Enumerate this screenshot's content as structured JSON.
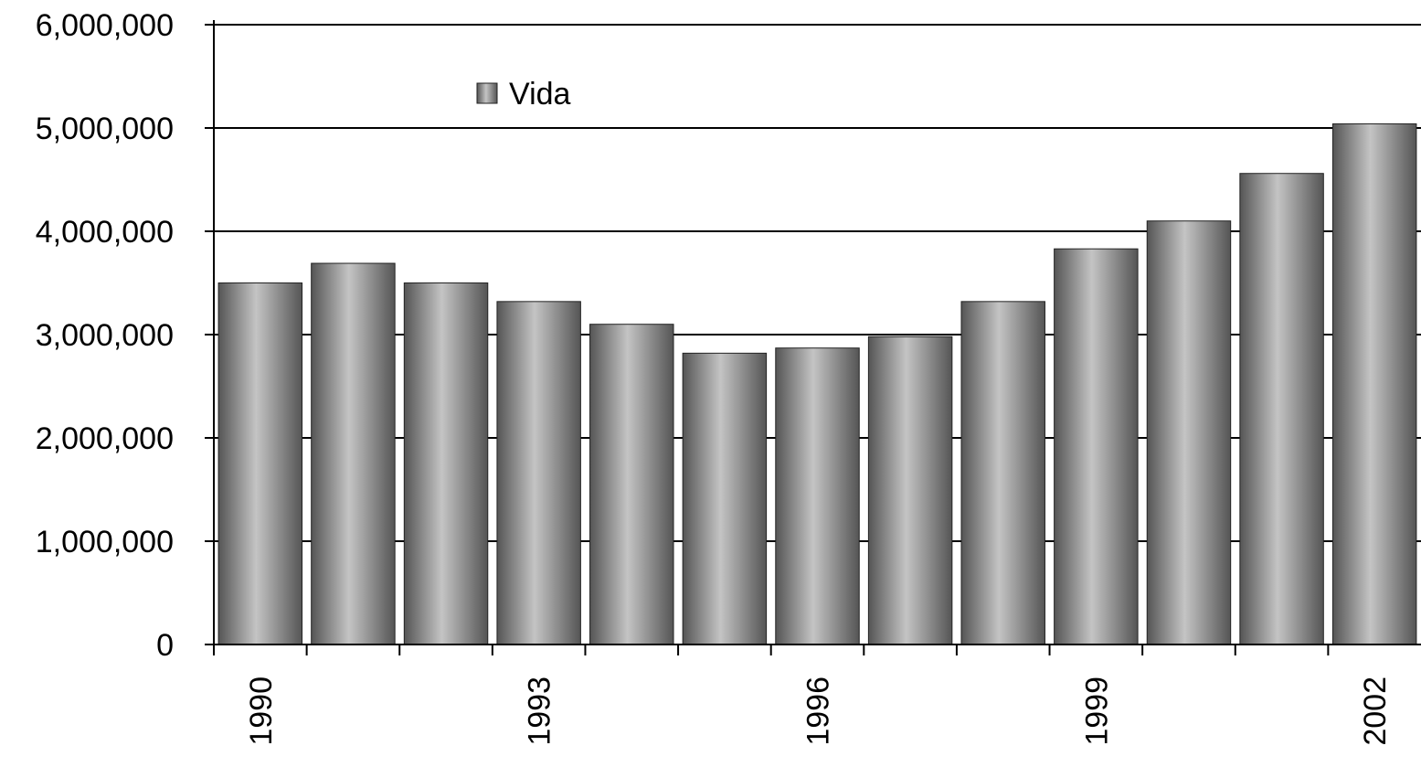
{
  "chart_data": {
    "type": "bar",
    "categories": [
      "1990",
      null,
      null,
      "1993",
      null,
      null,
      "1996",
      null,
      null,
      "1999",
      null,
      null,
      "2002"
    ],
    "series": [
      {
        "name": "Vida",
        "color": "#c4c4c4",
        "values": [
          3500000,
          3690000,
          3500000,
          3320000,
          3100000,
          2820000,
          2870000,
          2980000,
          3320000,
          3830000,
          4100000,
          4560000,
          5040000
        ]
      }
    ],
    "ylim": [
      0,
      6000000
    ],
    "yticks": [
      0,
      {
        "value": 1000000,
        "label": "1,000,000"
      },
      {
        "value": 2000000,
        "label": "2,000,000"
      },
      {
        "value": 3000000,
        "label": "3,000,000"
      },
      {
        "value": 4000000,
        "label": "4,000,000"
      },
      {
        "value": 5000000,
        "label": "5,000,000"
      },
      {
        "value": 6000000,
        "label": "6,000,000"
      }
    ],
    "grid": true,
    "legend": "top-left"
  }
}
